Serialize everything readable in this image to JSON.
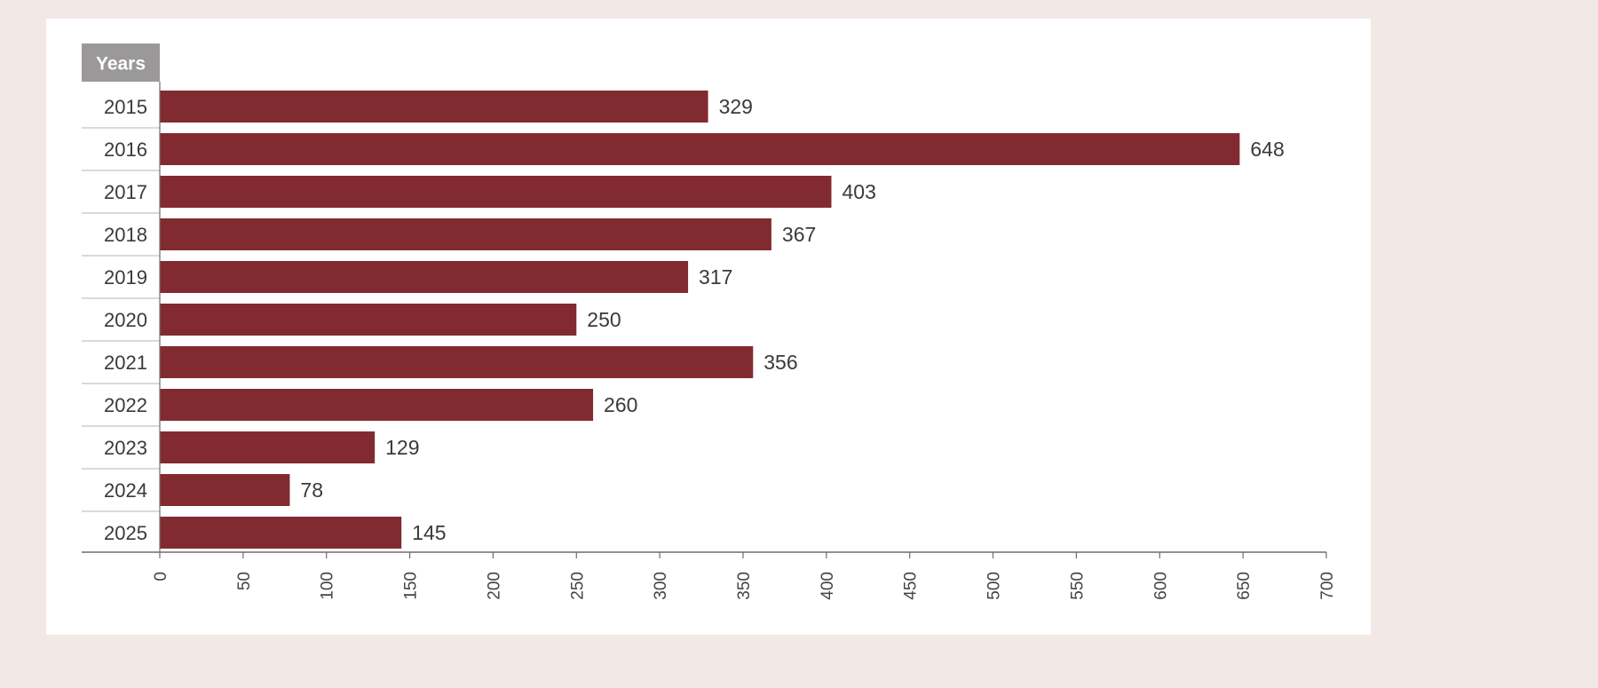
{
  "colors": {
    "background": "#f2e8e5",
    "card": "#ffffff",
    "bar": "#812b30",
    "header_bg": "#9a9898",
    "axis": "#6e6e6e",
    "text": "#3a3a3a"
  },
  "chart_data": {
    "type": "bar",
    "orientation": "horizontal",
    "category_header": "Years",
    "categories": [
      "2015",
      "2016",
      "2017",
      "2018",
      "2019",
      "2020",
      "2021",
      "2022",
      "2023",
      "2024",
      "2025"
    ],
    "values": [
      329,
      648,
      403,
      367,
      317,
      250,
      356,
      260,
      129,
      78,
      145
    ],
    "xlim": [
      0,
      700
    ],
    "x_ticks": [
      0,
      50,
      100,
      150,
      200,
      250,
      300,
      350,
      400,
      450,
      500,
      550,
      600,
      650,
      700
    ],
    "grid": false,
    "legend": "none",
    "data_labels": true
  }
}
